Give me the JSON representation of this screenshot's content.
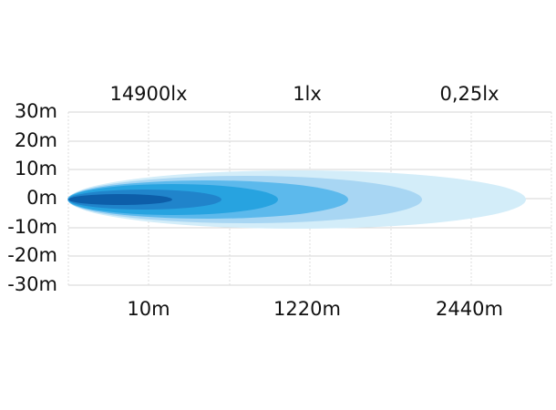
{
  "top_labels": [
    "14900lx",
    "1lx",
    "0,25lx"
  ],
  "y_labels": [
    "30m",
    "20m",
    "10m",
    "0m",
    "-10m",
    "-20m",
    "-30m"
  ],
  "bottom_labels": [
    "10m",
    "1220m",
    "2440m"
  ]
}
